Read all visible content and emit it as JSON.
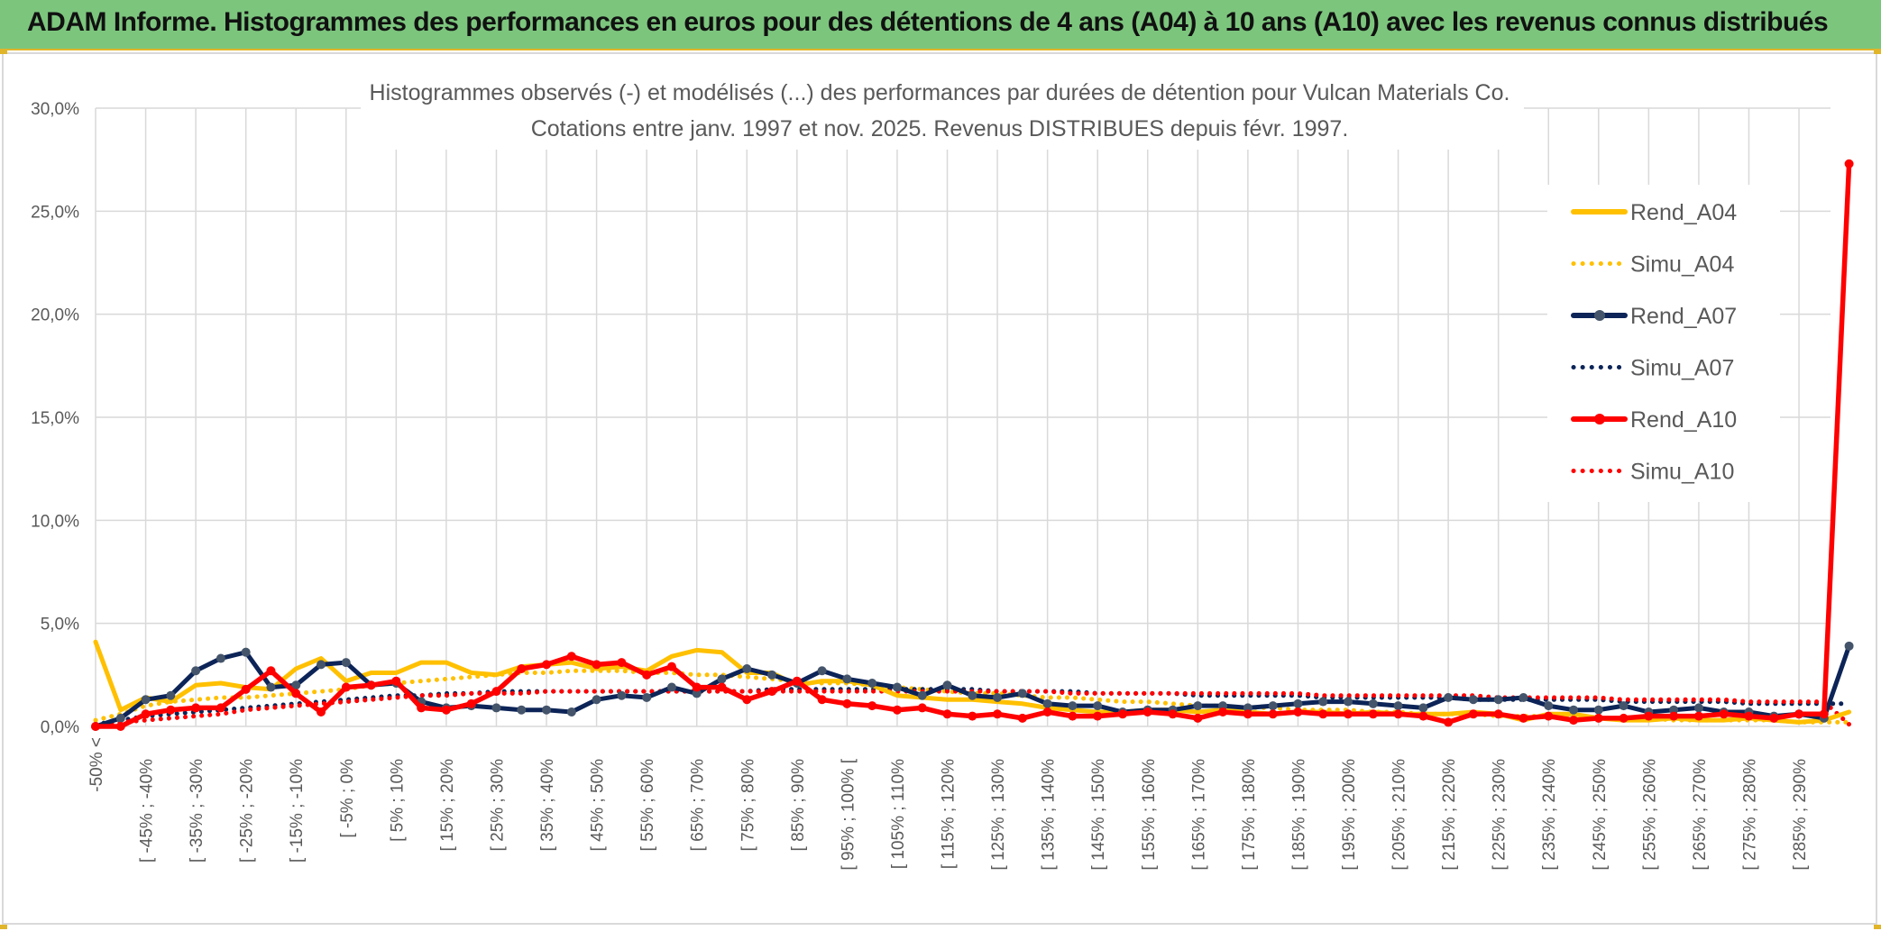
{
  "header": {
    "title": "ADAM Informe. Histogrammes des performances en euros pour des détentions de 4 ans (A04) à 10 ans (A10) avec les revenus connus distribués"
  },
  "colors": {
    "banner": "#7cc57d",
    "accent": "#e0b52a",
    "A04": "#ffc000",
    "A07": "#0c2457",
    "A10": "#ff0000",
    "grid": "#d9d9d9",
    "text": "#595959"
  },
  "chart_data": {
    "type": "line",
    "title": "Histogrammes observés (-) et modélisés (...) des performances par durées de détention pour Vulcan Materials Co.",
    "subtitle": "Cotations entre janv. 1997 et nov. 2025. Revenus DISTRIBUES depuis févr. 1997.",
    "xlabel": "",
    "ylabel": "",
    "ylim": [
      0,
      0.3
    ],
    "yticks": [
      "0,0%",
      "5,0%",
      "10,0%",
      "15,0%",
      "20,0%",
      "25,0%",
      "30,0%"
    ],
    "grid": true,
    "legend_position": "right",
    "x_labels": [
      "-50% <",
      "[ -45% ; -40%",
      "[ -35% ; -30%",
      "[ -25% ; -20%",
      "[ -15% ; -10%",
      "[ -5% ; 0%",
      "[ 5% ; 10%",
      "[ 15% ; 20%",
      "[ 25% ; 30%",
      "[ 35% ; 40%",
      "[ 45% ; 50%",
      "[ 55% ; 60%",
      "[ 65% ; 70%",
      "[ 75% ; 80%",
      "[ 85% ; 90%",
      "[ 95% ; 100% [",
      "[ 105% ; 110%",
      "[ 115% ; 120%",
      "[ 125% ; 130%",
      "[ 135% ; 140%",
      "[ 145% ; 150%",
      "[ 155% ; 160%",
      "[ 165% ; 170%",
      "[ 175% ; 180%",
      "[ 185% ; 190%",
      "[ 195% ; 200%",
      "[ 205% ; 210%",
      "[ 215% ; 220%",
      "[ 225% ; 230%",
      "[ 235% ; 240%",
      "[ 245% ; 250%",
      "[ 255% ; 260%",
      "[ 265% ; 270%",
      "[ 275% ; 280%",
      "[ 285% ; 290%"
    ],
    "bins": 71,
    "series": [
      {
        "name": "Rend_A04",
        "style": "solid",
        "color": "#ffc000",
        "values": [
          0.041,
          0.008,
          0.014,
          0.012,
          0.02,
          0.021,
          0.019,
          0.018,
          0.028,
          0.033,
          0.022,
          0.026,
          0.026,
          0.031,
          0.031,
          0.026,
          0.025,
          0.029,
          0.03,
          0.031,
          0.028,
          0.029,
          0.027,
          0.034,
          0.037,
          0.036,
          0.026,
          0.026,
          0.02,
          0.022,
          0.022,
          0.02,
          0.015,
          0.014,
          0.013,
          0.013,
          0.012,
          0.011,
          0.009,
          0.008,
          0.007,
          0.007,
          0.008,
          0.008,
          0.007,
          0.008,
          0.007,
          0.006,
          0.007,
          0.007,
          0.006,
          0.007,
          0.006,
          0.006,
          0.006,
          0.007,
          0.006,
          0.003,
          0.006,
          0.006,
          0.004,
          0.003,
          0.003,
          0.004,
          0.003,
          0.003,
          0.004,
          0.003,
          0.002,
          0.003,
          0.007
        ]
      },
      {
        "name": "Simu_A04",
        "style": "dotted",
        "color": "#ffc000",
        "values": [
          0.003,
          0.006,
          0.01,
          0.012,
          0.013,
          0.014,
          0.014,
          0.015,
          0.016,
          0.017,
          0.018,
          0.02,
          0.021,
          0.022,
          0.023,
          0.024,
          0.025,
          0.026,
          0.026,
          0.027,
          0.027,
          0.027,
          0.026,
          0.026,
          0.025,
          0.025,
          0.024,
          0.023,
          0.022,
          0.021,
          0.021,
          0.02,
          0.019,
          0.018,
          0.017,
          0.016,
          0.016,
          0.015,
          0.014,
          0.014,
          0.013,
          0.012,
          0.012,
          0.011,
          0.01,
          0.01,
          0.009,
          0.009,
          0.008,
          0.008,
          0.008,
          0.007,
          0.007,
          0.006,
          0.006,
          0.006,
          0.005,
          0.005,
          0.005,
          0.004,
          0.004,
          0.004,
          0.004,
          0.003,
          0.003,
          0.003,
          0.003,
          0.003,
          0.002,
          0.002,
          0.002
        ]
      },
      {
        "name": "Rend_A07",
        "style": "solid-marker",
        "color": "#0c2457",
        "values": [
          0.0,
          0.004,
          0.013,
          0.015,
          0.027,
          0.033,
          0.036,
          0.019,
          0.02,
          0.03,
          0.031,
          0.02,
          0.021,
          0.012,
          0.009,
          0.01,
          0.009,
          0.008,
          0.008,
          0.007,
          0.013,
          0.015,
          0.014,
          0.019,
          0.016,
          0.023,
          0.028,
          0.025,
          0.021,
          0.027,
          0.023,
          0.021,
          0.019,
          0.015,
          0.02,
          0.015,
          0.014,
          0.016,
          0.011,
          0.01,
          0.01,
          0.007,
          0.008,
          0.008,
          0.01,
          0.01,
          0.009,
          0.01,
          0.011,
          0.012,
          0.012,
          0.011,
          0.01,
          0.009,
          0.014,
          0.013,
          0.013,
          0.014,
          0.01,
          0.008,
          0.008,
          0.01,
          0.007,
          0.008,
          0.009,
          0.007,
          0.007,
          0.005,
          0.006,
          0.004,
          0.039
        ]
      },
      {
        "name": "Simu_A07",
        "style": "dotted",
        "color": "#0c2457",
        "values": [
          0.001,
          0.003,
          0.005,
          0.006,
          0.007,
          0.008,
          0.009,
          0.01,
          0.011,
          0.012,
          0.013,
          0.014,
          0.015,
          0.015,
          0.016,
          0.016,
          0.017,
          0.017,
          0.017,
          0.017,
          0.017,
          0.017,
          0.017,
          0.017,
          0.017,
          0.017,
          0.017,
          0.018,
          0.018,
          0.018,
          0.018,
          0.018,
          0.018,
          0.018,
          0.018,
          0.018,
          0.017,
          0.017,
          0.017,
          0.017,
          0.016,
          0.016,
          0.016,
          0.016,
          0.015,
          0.015,
          0.015,
          0.015,
          0.015,
          0.014,
          0.014,
          0.014,
          0.014,
          0.014,
          0.014,
          0.013,
          0.013,
          0.013,
          0.013,
          0.013,
          0.013,
          0.012,
          0.012,
          0.012,
          0.012,
          0.012,
          0.011,
          0.011,
          0.011,
          0.011,
          0.011
        ]
      },
      {
        "name": "Rend_A10",
        "style": "solid-marker",
        "color": "#ff0000",
        "values": [
          0.0,
          0.0,
          0.006,
          0.008,
          0.009,
          0.009,
          0.018,
          0.027,
          0.016,
          0.007,
          0.019,
          0.02,
          0.022,
          0.009,
          0.008,
          0.011,
          0.017,
          0.028,
          0.03,
          0.034,
          0.03,
          0.031,
          0.025,
          0.029,
          0.019,
          0.019,
          0.013,
          0.017,
          0.022,
          0.013,
          0.011,
          0.01,
          0.008,
          0.009,
          0.006,
          0.005,
          0.006,
          0.004,
          0.007,
          0.005,
          0.005,
          0.006,
          0.007,
          0.006,
          0.004,
          0.007,
          0.006,
          0.006,
          0.007,
          0.006,
          0.006,
          0.006,
          0.006,
          0.005,
          0.002,
          0.006,
          0.006,
          0.004,
          0.005,
          0.003,
          0.004,
          0.004,
          0.005,
          0.005,
          0.005,
          0.006,
          0.005,
          0.004,
          0.006,
          0.006,
          0.273
        ]
      },
      {
        "name": "Simu_A10",
        "style": "dotted",
        "color": "#ff0000",
        "values": [
          0.0,
          0.002,
          0.003,
          0.004,
          0.005,
          0.006,
          0.008,
          0.009,
          0.01,
          0.011,
          0.012,
          0.013,
          0.014,
          0.015,
          0.015,
          0.016,
          0.016,
          0.016,
          0.017,
          0.017,
          0.017,
          0.017,
          0.017,
          0.017,
          0.017,
          0.017,
          0.017,
          0.017,
          0.017,
          0.017,
          0.017,
          0.017,
          0.017,
          0.017,
          0.017,
          0.017,
          0.017,
          0.017,
          0.017,
          0.016,
          0.016,
          0.016,
          0.016,
          0.016,
          0.016,
          0.016,
          0.016,
          0.016,
          0.016,
          0.015,
          0.015,
          0.015,
          0.015,
          0.015,
          0.015,
          0.015,
          0.014,
          0.014,
          0.014,
          0.014,
          0.014,
          0.013,
          0.013,
          0.013,
          0.013,
          0.013,
          0.012,
          0.012,
          0.012,
          0.012,
          0.001
        ]
      }
    ]
  }
}
